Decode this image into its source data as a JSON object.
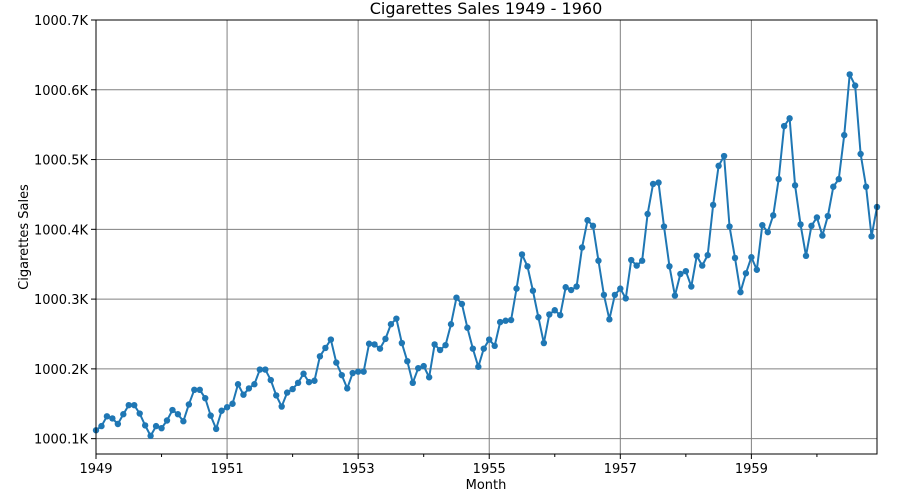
{
  "chart_data": {
    "type": "line",
    "title": "Cigarettes Sales 1949 - 1960",
    "xlabel": "Month",
    "ylabel": "Cigarettes Sales",
    "xlim": [
      "1949-01",
      "1960-12"
    ],
    "ylim": [
      1000.078,
      1000.7
    ],
    "grid": true,
    "marker": "circle",
    "color": "#1f77b4",
    "x_ticks": [
      {
        "date": "1949-01",
        "label": "1949"
      },
      {
        "date": "1951-01",
        "label": "1951"
      },
      {
        "date": "1953-01",
        "label": "1953"
      },
      {
        "date": "1955-01",
        "label": "1955"
      },
      {
        "date": "1957-01",
        "label": "1957"
      },
      {
        "date": "1959-01",
        "label": "1959"
      }
    ],
    "x_minor_ticks": [
      "1950-01",
      "1952-01",
      "1954-01",
      "1956-01",
      "1958-01",
      "1960-01"
    ],
    "y_ticks": [
      {
        "value": 1000.1,
        "label": "1000.1K"
      },
      {
        "value": 1000.2,
        "label": "1000.2K"
      },
      {
        "value": 1000.3,
        "label": "1000.3K"
      },
      {
        "value": 1000.4,
        "label": "1000.4K"
      },
      {
        "value": 1000.5,
        "label": "1000.5K"
      },
      {
        "value": 1000.6,
        "label": "1000.6K"
      },
      {
        "value": 1000.7,
        "label": "1000.7K"
      }
    ],
    "series": [
      {
        "start": "1949-01",
        "values": [
          1000.112,
          1000.118,
          1000.132,
          1000.129,
          1000.121,
          1000.135,
          1000.148,
          1000.148,
          1000.136,
          1000.119,
          1000.104,
          1000.118,
          1000.115,
          1000.126,
          1000.141,
          1000.135,
          1000.125,
          1000.149,
          1000.17,
          1000.17,
          1000.158,
          1000.133,
          1000.114,
          1000.14,
          1000.145,
          1000.15,
          1000.178,
          1000.163,
          1000.172,
          1000.178,
          1000.199,
          1000.199,
          1000.184,
          1000.162,
          1000.146,
          1000.166,
          1000.171,
          1000.18,
          1000.193,
          1000.181,
          1000.183,
          1000.218,
          1000.23,
          1000.242,
          1000.209,
          1000.191,
          1000.172,
          1000.194,
          1000.196,
          1000.196,
          1000.236,
          1000.235,
          1000.229,
          1000.243,
          1000.264,
          1000.272,
          1000.237,
          1000.211,
          1000.18,
          1000.201,
          1000.204,
          1000.188,
          1000.235,
          1000.227,
          1000.234,
          1000.264,
          1000.302,
          1000.293,
          1000.259,
          1000.229,
          1000.203,
          1000.229,
          1000.242,
          1000.233,
          1000.267,
          1000.269,
          1000.27,
          1000.315,
          1000.364,
          1000.347,
          1000.312,
          1000.274,
          1000.237,
          1000.278,
          1000.284,
          1000.277,
          1000.317,
          1000.313,
          1000.318,
          1000.374,
          1000.413,
          1000.405,
          1000.355,
          1000.306,
          1000.271,
          1000.306,
          1000.315,
          1000.301,
          1000.356,
          1000.348,
          1000.355,
          1000.422,
          1000.465,
          1000.467,
          1000.404,
          1000.347,
          1000.305,
          1000.336,
          1000.34,
          1000.318,
          1000.362,
          1000.348,
          1000.363,
          1000.435,
          1000.491,
          1000.505,
          1000.404,
          1000.359,
          1000.31,
          1000.337,
          1000.36,
          1000.342,
          1000.406,
          1000.396,
          1000.42,
          1000.472,
          1000.548,
          1000.559,
          1000.463,
          1000.407,
          1000.362,
          1000.405,
          1000.417,
          1000.391,
          1000.419,
          1000.461,
          1000.472,
          1000.535,
          1000.622,
          1000.606,
          1000.508,
          1000.461,
          1000.39,
          1000.432
        ]
      }
    ]
  }
}
